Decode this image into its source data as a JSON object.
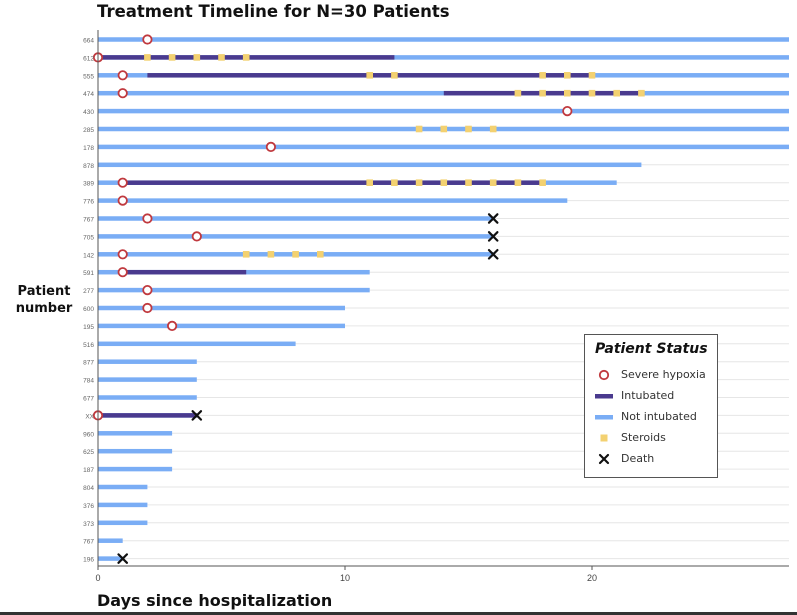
{
  "chart_data": {
    "type": "swimmer",
    "title": "Treatment Timeline for N=30 Patients",
    "xlabel": "Days since hospitalization",
    "ylabel": "Patient number",
    "xlim": [
      0,
      28
    ],
    "xticks": [
      0,
      10,
      20
    ],
    "grid": true,
    "legend_position": "bottom-right",
    "legend_title": "Patient Status",
    "legend": [
      {
        "key": "hypoxia",
        "label": "Severe hypoxia"
      },
      {
        "key": "intubated",
        "label": "Intubated"
      },
      {
        "key": "not_intubated",
        "label": "Not intubated"
      },
      {
        "key": "steroids",
        "label": "Steroids"
      },
      {
        "key": "death",
        "label": "Death"
      }
    ],
    "colors": {
      "not_intubated": "#7aadf5",
      "intubated": "#4a3a8e",
      "steroids": "#f3d171",
      "hypoxia": "#c0393e",
      "death": "#111111"
    },
    "patients": [
      {
        "id": "664",
        "end": 28,
        "intubated": null,
        "hypoxia": 2,
        "steroids": [],
        "death": null
      },
      {
        "id": "612",
        "end": 28,
        "intubated": [
          0,
          12
        ],
        "hypoxia": 0,
        "steroids": [
          2,
          3,
          4,
          5,
          6
        ],
        "death": null
      },
      {
        "id": "555",
        "end": 28,
        "intubated": [
          2,
          20
        ],
        "hypoxia": 1,
        "steroids": [
          11,
          12,
          18,
          19,
          20
        ],
        "death": null
      },
      {
        "id": "474",
        "end": 28,
        "intubated": [
          14,
          22
        ],
        "hypoxia": 1,
        "steroids": [
          17,
          18,
          19,
          20,
          21,
          22
        ],
        "death": null
      },
      {
        "id": "430",
        "end": 28,
        "intubated": null,
        "hypoxia": 19,
        "steroids": [],
        "death": null
      },
      {
        "id": "285",
        "end": 28,
        "intubated": null,
        "hypoxia": null,
        "steroids": [
          13,
          14,
          15,
          16
        ],
        "death": null
      },
      {
        "id": "178",
        "end": 28,
        "intubated": null,
        "hypoxia": 7,
        "steroids": [],
        "death": null
      },
      {
        "id": "878",
        "end": 22,
        "intubated": null,
        "hypoxia": null,
        "steroids": [],
        "death": null
      },
      {
        "id": "389",
        "end": 21,
        "intubated": [
          1,
          18
        ],
        "hypoxia": 1,
        "steroids": [
          11,
          12,
          13,
          14,
          15,
          16,
          17,
          18
        ],
        "death": null
      },
      {
        "id": "776",
        "end": 19,
        "intubated": null,
        "hypoxia": 1,
        "steroids": [],
        "death": null
      },
      {
        "id": "767",
        "end": 16,
        "intubated": null,
        "hypoxia": 2,
        "steroids": [],
        "death": 16
      },
      {
        "id": "705",
        "end": 16,
        "intubated": null,
        "hypoxia": 4,
        "steroids": [],
        "death": 16
      },
      {
        "id": "142",
        "end": 16,
        "intubated": null,
        "hypoxia": 1,
        "steroids": [
          6,
          7,
          8,
          9
        ],
        "death": 16
      },
      {
        "id": "591",
        "end": 11,
        "intubated": [
          1,
          6
        ],
        "hypoxia": 1,
        "steroids": [],
        "death": null
      },
      {
        "id": "277",
        "end": 11,
        "intubated": null,
        "hypoxia": 2,
        "steroids": [],
        "death": null
      },
      {
        "id": "600",
        "end": 10,
        "intubated": null,
        "hypoxia": 2,
        "steroids": [],
        "death": null
      },
      {
        "id": "195",
        "end": 10,
        "intubated": null,
        "hypoxia": 3,
        "steroids": [],
        "death": null
      },
      {
        "id": "516",
        "end": 8,
        "intubated": null,
        "hypoxia": null,
        "steroids": [],
        "death": null
      },
      {
        "id": "877",
        "end": 4,
        "intubated": null,
        "hypoxia": null,
        "steroids": [],
        "death": null
      },
      {
        "id": "784",
        "end": 4,
        "intubated": null,
        "hypoxia": null,
        "steroids": [],
        "death": null
      },
      {
        "id": "677",
        "end": 4,
        "intubated": null,
        "hypoxia": null,
        "steroids": [],
        "death": null
      },
      {
        "id": "XX",
        "end": 4,
        "intubated": [
          0,
          4
        ],
        "hypoxia": 0,
        "steroids": [],
        "death": 4
      },
      {
        "id": "960",
        "end": 3,
        "intubated": null,
        "hypoxia": null,
        "steroids": [],
        "death": null
      },
      {
        "id": "625",
        "end": 3,
        "intubated": null,
        "hypoxia": null,
        "steroids": [],
        "death": null
      },
      {
        "id": "187",
        "end": 3,
        "intubated": null,
        "hypoxia": null,
        "steroids": [],
        "death": null
      },
      {
        "id": "804",
        "end": 2,
        "intubated": null,
        "hypoxia": null,
        "steroids": [],
        "death": null
      },
      {
        "id": "376",
        "end": 2,
        "intubated": null,
        "hypoxia": null,
        "steroids": [],
        "death": null
      },
      {
        "id": "373",
        "end": 2,
        "intubated": null,
        "hypoxia": null,
        "steroids": [],
        "death": null
      },
      {
        "id": "767",
        "end": 1,
        "intubated": null,
        "hypoxia": null,
        "steroids": [],
        "death": null
      },
      {
        "id": "196",
        "end": 1,
        "intubated": null,
        "hypoxia": null,
        "steroids": [],
        "death": 1
      }
    ]
  }
}
